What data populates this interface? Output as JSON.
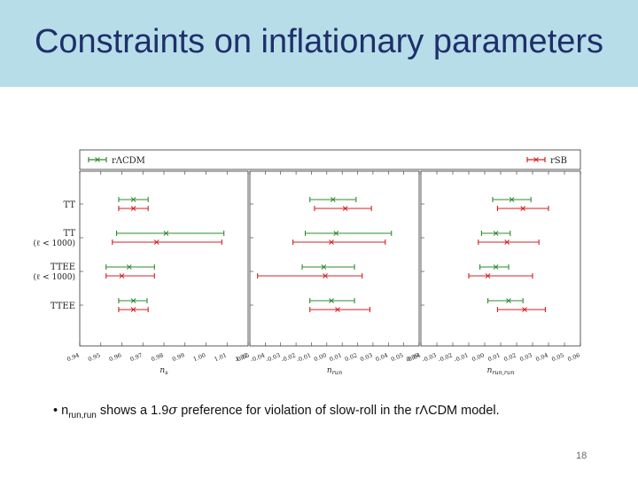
{
  "slide": {
    "title": "Constraints on inflationary parameters",
    "page_number": "18",
    "bullet": {
      "marker": "•",
      "sym_main": "n",
      "sym_sub": "run,run",
      "text_a": " shows a 1.9",
      "sigma": "σ",
      "text_b": " preference for violation of slow-roll in the rΛCDM model."
    }
  },
  "colors": {
    "model1": "#2e8b2e",
    "model2": "#d62020",
    "title_bar": "#b7dde8",
    "title_text": "#1f2f6b"
  },
  "chart_data": {
    "type": "scatter",
    "legend": {
      "entries": [
        "rΛCDM",
        "rSB"
      ],
      "placement": "top"
    },
    "row_labels": [
      "TT",
      "TT\n(ℓ < 1000)",
      "TTEE\n(ℓ < 1000)",
      "TTEE"
    ],
    "panels": [
      {
        "xlabel": "n_s",
        "xlim": [
          0.94,
          1.02
        ],
        "ticks": [
          0.94,
          0.95,
          0.96,
          0.97,
          0.98,
          0.99,
          1.0,
          1.01,
          1.02
        ],
        "tick_labels": [
          "0.94",
          "0.95",
          "0.96",
          "0.97",
          "0.98",
          "0.99",
          "1.00",
          "1.01",
          "1.02"
        ],
        "series": [
          {
            "name": "rΛCDM",
            "center": [
              0.9655,
              0.981,
              0.9635,
              0.9655
            ],
            "low": [
              0.9585,
              0.9575,
              0.9525,
              0.9585
            ],
            "high": [
              0.9725,
              1.0085,
              0.9755,
              0.972
            ]
          },
          {
            "name": "rSB",
            "center": [
              0.9655,
              0.9765,
              0.96,
              0.9655
            ],
            "low": [
              0.9585,
              0.9555,
              0.9525,
              0.9585
            ],
            "high": [
              0.9725,
              1.0075,
              0.9755,
              0.9725
            ]
          }
        ]
      },
      {
        "xlabel": "n_run",
        "xlim": [
          -0.05,
          0.06
        ],
        "ticks": [
          -0.05,
          -0.04,
          -0.03,
          -0.02,
          -0.01,
          0.0,
          0.01,
          0.02,
          0.03,
          0.04,
          0.05,
          0.06
        ],
        "tick_labels": [
          "-0.05",
          "-0.04",
          "-0.03",
          "-0.02",
          "-0.01",
          "0.00",
          "0.01",
          "0.02",
          "0.03",
          "0.04",
          "0.05",
          "0.06"
        ],
        "series": [
          {
            "name": "rΛCDM",
            "center": [
              0.004,
              0.006,
              -0.002,
              0.003
            ],
            "low": [
              -0.011,
              -0.014,
              -0.016,
              -0.011
            ],
            "high": [
              0.019,
              0.042,
              0.018,
              0.018
            ]
          },
          {
            "name": "rSB",
            "center": [
              0.012,
              0.003,
              -0.001,
              0.007
            ],
            "low": [
              -0.008,
              -0.022,
              -0.045,
              -0.011
            ],
            "high": [
              0.029,
              0.038,
              0.023,
              0.028
            ]
          }
        ]
      },
      {
        "xlabel": "n_run,run",
        "xlim": [
          -0.04,
          0.06
        ],
        "ticks": [
          -0.04,
          -0.03,
          -0.02,
          -0.01,
          0.0,
          0.01,
          0.02,
          0.03,
          0.04,
          0.05,
          0.06
        ],
        "tick_labels": [
          "-0.04",
          "-0.03",
          "-0.02",
          "-0.01",
          "0.00",
          "0.01",
          "0.02",
          "0.03",
          "0.04",
          "0.05",
          "0.06"
        ],
        "series": [
          {
            "name": "rΛCDM",
            "center": [
              0.017,
              0.007,
              0.007,
              0.015
            ],
            "low": [
              0.005,
              -0.002,
              -0.003,
              0.002
            ],
            "high": [
              0.029,
              0.016,
              0.015,
              0.024
            ]
          },
          {
            "name": "rSB",
            "center": [
              0.024,
              0.014,
              0.002,
              0.025
            ],
            "low": [
              0.008,
              -0.004,
              -0.01,
              0.008
            ],
            "high": [
              0.04,
              0.034,
              0.03,
              0.038
            ]
          }
        ]
      }
    ]
  }
}
